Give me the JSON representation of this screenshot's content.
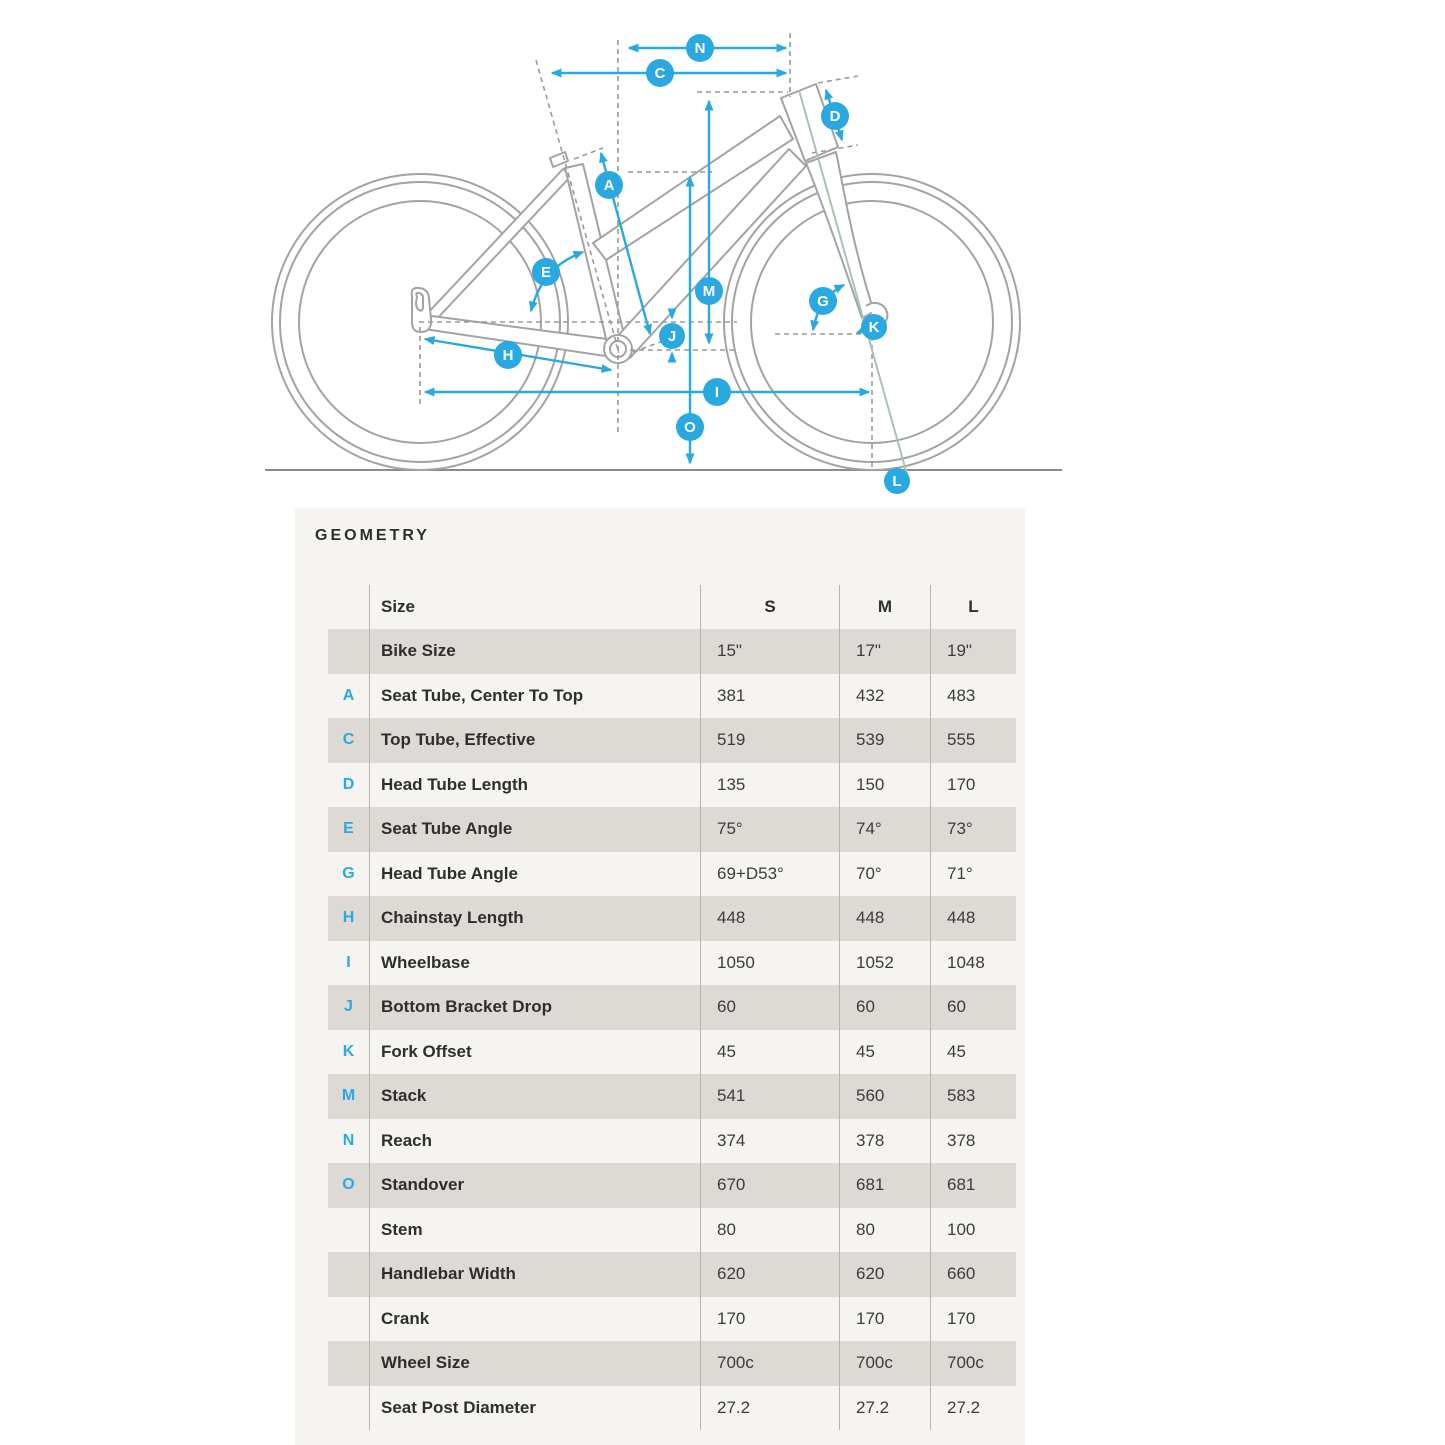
{
  "page": {
    "background": "#ffffff"
  },
  "diagram": {
    "description": "bike-frame-geometry-diagram",
    "accent_color": "#29a9e0",
    "frame_line_color": "#a3a3a3",
    "steering_axis_color": "#a9c3ad",
    "labels": {
      "A": "A",
      "C": "C",
      "D": "D",
      "E": "E",
      "G": "G",
      "H": "H",
      "I": "I",
      "J": "J",
      "K": "K",
      "L": "L",
      "M": "M",
      "N": "N",
      "O": "O"
    }
  },
  "geometry_panel": {
    "title": "GEOMETRY",
    "background": "#f6f4f0",
    "stripe_color": "#dddad6",
    "table": {
      "columns": [
        "Size",
        "S",
        "M",
        "L"
      ],
      "rows": [
        {
          "letter": "",
          "label": "Bike Size",
          "values": [
            "15\"",
            "17\"",
            "19\""
          ]
        },
        {
          "letter": "A",
          "label": "Seat Tube, Center To Top",
          "values": [
            "381",
            "432",
            "483"
          ]
        },
        {
          "letter": "C",
          "label": "Top Tube, Effective",
          "values": [
            "519",
            "539",
            "555"
          ]
        },
        {
          "letter": "D",
          "label": "Head Tube Length",
          "values": [
            "135",
            "150",
            "170"
          ]
        },
        {
          "letter": "E",
          "label": "Seat Tube Angle",
          "values": [
            "75°",
            "74°",
            "73°"
          ]
        },
        {
          "letter": "G",
          "label": "Head Tube Angle",
          "values": [
            "69+D53°",
            "70°",
            "71°"
          ]
        },
        {
          "letter": "H",
          "label": "Chainstay Length",
          "values": [
            "448",
            "448",
            "448"
          ]
        },
        {
          "letter": "I",
          "label": "Wheelbase",
          "values": [
            "1050",
            "1052",
            "1048"
          ]
        },
        {
          "letter": "J",
          "label": "Bottom Bracket Drop",
          "values": [
            "60",
            "60",
            "60"
          ]
        },
        {
          "letter": "K",
          "label": "Fork Offset",
          "values": [
            "45",
            "45",
            "45"
          ]
        },
        {
          "letter": "M",
          "label": "Stack",
          "values": [
            "541",
            "560",
            "583"
          ]
        },
        {
          "letter": "N",
          "label": "Reach",
          "values": [
            "374",
            "378",
            "378"
          ]
        },
        {
          "letter": "O",
          "label": "Standover",
          "values": [
            "670",
            "681",
            "681"
          ]
        },
        {
          "letter": "",
          "label": "Stem",
          "values": [
            "80",
            "80",
            "100"
          ]
        },
        {
          "letter": "",
          "label": "Handlebar Width",
          "values": [
            "620",
            "620",
            "660"
          ]
        },
        {
          "letter": "",
          "label": "Crank",
          "values": [
            "170",
            "170",
            "170"
          ]
        },
        {
          "letter": "",
          "label": "Wheel Size",
          "values": [
            "700c",
            "700c",
            "700c"
          ]
        },
        {
          "letter": "",
          "label": "Seat Post Diameter",
          "values": [
            "27.2",
            "27.2",
            "27.2"
          ]
        }
      ]
    }
  }
}
